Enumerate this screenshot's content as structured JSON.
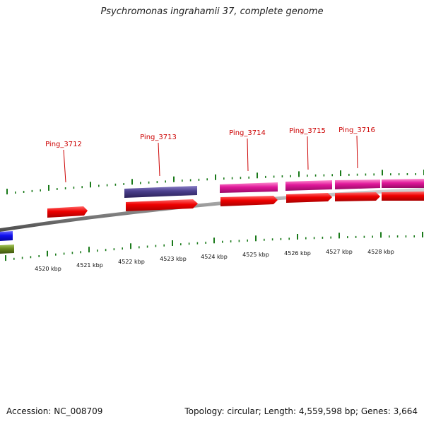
{
  "title": "Psychromonas ingrahamii 37, complete genome",
  "footer": {
    "accession": "Accession: NC_008709",
    "summary": "Topology: circular; Length: 4,559,598 bp; Genes: 3,664"
  },
  "colors": {
    "backbone": "#8c8c8c",
    "tick": "#1a7a1a",
    "gene_label": "#cc0000",
    "cds": "#ee0000",
    "pink_feature": "#e0189a",
    "purple_feature": "#4a3f8c",
    "blue_feature": "#1010ee",
    "olive_feature": "#6a8a1e"
  },
  "gene_labels": [
    "Ping_3712",
    "Ping_3713",
    "Ping_3714",
    "Ping_3715",
    "Ping_3716"
  ],
  "axis_labels": [
    "4520 kbp",
    "4521 kbp",
    "4522 kbp",
    "4523 kbp",
    "4524 kbp",
    "4525 kbp",
    "4526 kbp",
    "4527 kbp",
    "4528 kbp"
  ]
}
